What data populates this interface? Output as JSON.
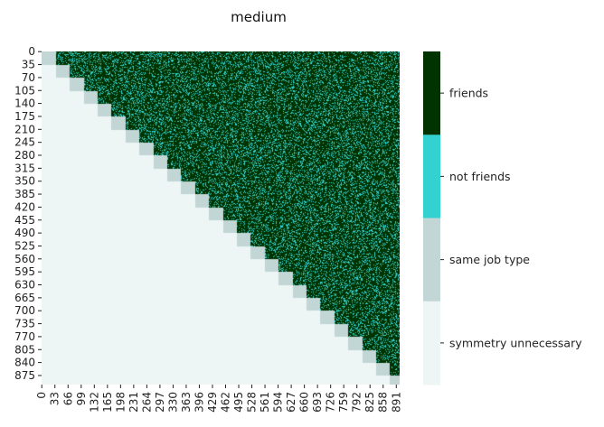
{
  "chart_data": {
    "type": "heatmap",
    "title": "medium",
    "n": 900,
    "block_size": 35,
    "y_ticks": [
      "0",
      "35",
      "70",
      "105",
      "140",
      "175",
      "210",
      "245",
      "280",
      "315",
      "350",
      "385",
      "420",
      "455",
      "490",
      "525",
      "560",
      "595",
      "630",
      "665",
      "700",
      "735",
      "770",
      "805",
      "840",
      "875"
    ],
    "x_ticks": [
      "0",
      "33",
      "66",
      "99",
      "132",
      "165",
      "198",
      "231",
      "264",
      "297",
      "330",
      "363",
      "396",
      "429",
      "462",
      "495",
      "528",
      "561",
      "594",
      "627",
      "660",
      "693",
      "726",
      "759",
      "792",
      "825",
      "858",
      "891"
    ],
    "categories": [
      {
        "label": "friends",
        "color": "#003300"
      },
      {
        "label": "not friends",
        "color": "#33d1cf"
      },
      {
        "label": "same job type",
        "color": "#c2d6d6"
      },
      {
        "label": "symmetry unnecessary",
        "color": "#edf5f5"
      }
    ],
    "regions": {
      "below_diagonal": "symmetry unnecessary",
      "diagonal_blocks": "same job type",
      "above_diagonal": "mixture of friends and not friends (mostly friends)"
    }
  }
}
